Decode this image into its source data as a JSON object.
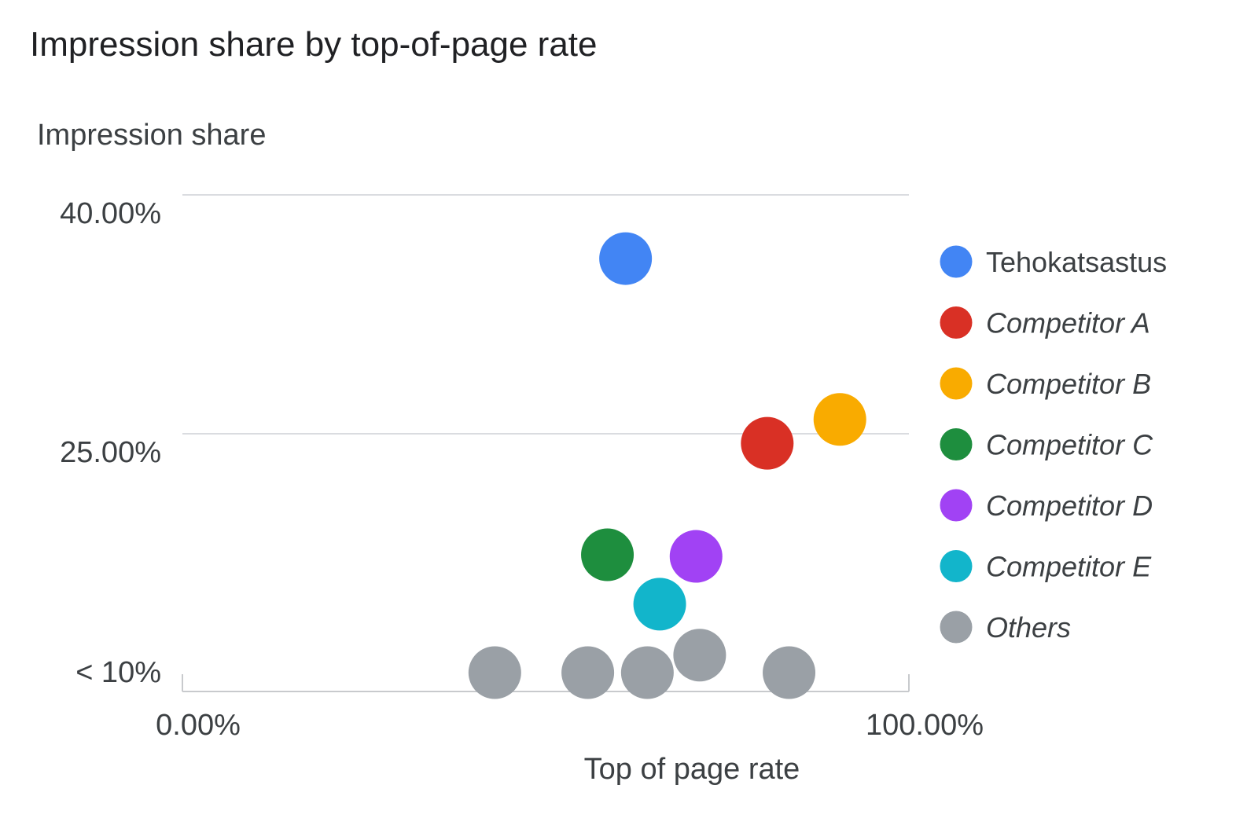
{
  "chart_data": {
    "type": "scatter",
    "title": "Impression share by top-of-page rate",
    "xlabel": "Top of page rate",
    "ylabel": "Impression share",
    "xlim": [
      0,
      100
    ],
    "ylim": [
      10,
      40
    ],
    "x_ticks": [
      {
        "value": 0,
        "label": "0.00%"
      },
      {
        "value": 100,
        "label": "100.00%"
      }
    ],
    "y_ticks": [
      {
        "value": 40,
        "label": "40.00%"
      },
      {
        "value": 25,
        "label": "25.00%"
      },
      {
        "value": 10,
        "label": "< 10%"
      }
    ],
    "grid": true,
    "legend_position": "right",
    "series": [
      {
        "name": "Tehokatsastus",
        "color": "#4285f4",
        "italic": false,
        "points": [
          {
            "x": 61,
            "y": 36
          }
        ]
      },
      {
        "name": "Competitor A",
        "color": "#d93025",
        "italic": true,
        "points": [
          {
            "x": 80.5,
            "y": 24.4
          }
        ]
      },
      {
        "name": "Competitor B",
        "color": "#f9ab00",
        "italic": true,
        "points": [
          {
            "x": 90.5,
            "y": 25.9
          }
        ]
      },
      {
        "name": "Competitor C",
        "color": "#1e8e3e",
        "italic": true,
        "points": [
          {
            "x": 58.5,
            "y": 17.4
          }
        ]
      },
      {
        "name": "Competitor D",
        "color": "#a142f4",
        "italic": true,
        "points": [
          {
            "x": 70.7,
            "y": 17.3
          }
        ]
      },
      {
        "name": "Competitor E",
        "color": "#12b5cb",
        "italic": true,
        "points": [
          {
            "x": 65.7,
            "y": 14.3
          }
        ]
      },
      {
        "name": "Others",
        "color": "#9aa0a6",
        "italic": true,
        "points": [
          {
            "x": 43,
            "y": 10
          },
          {
            "x": 55.8,
            "y": 10
          },
          {
            "x": 64,
            "y": 10
          },
          {
            "x": 71.2,
            "y": 11.1
          },
          {
            "x": 83.5,
            "y": 10
          }
        ]
      }
    ]
  }
}
